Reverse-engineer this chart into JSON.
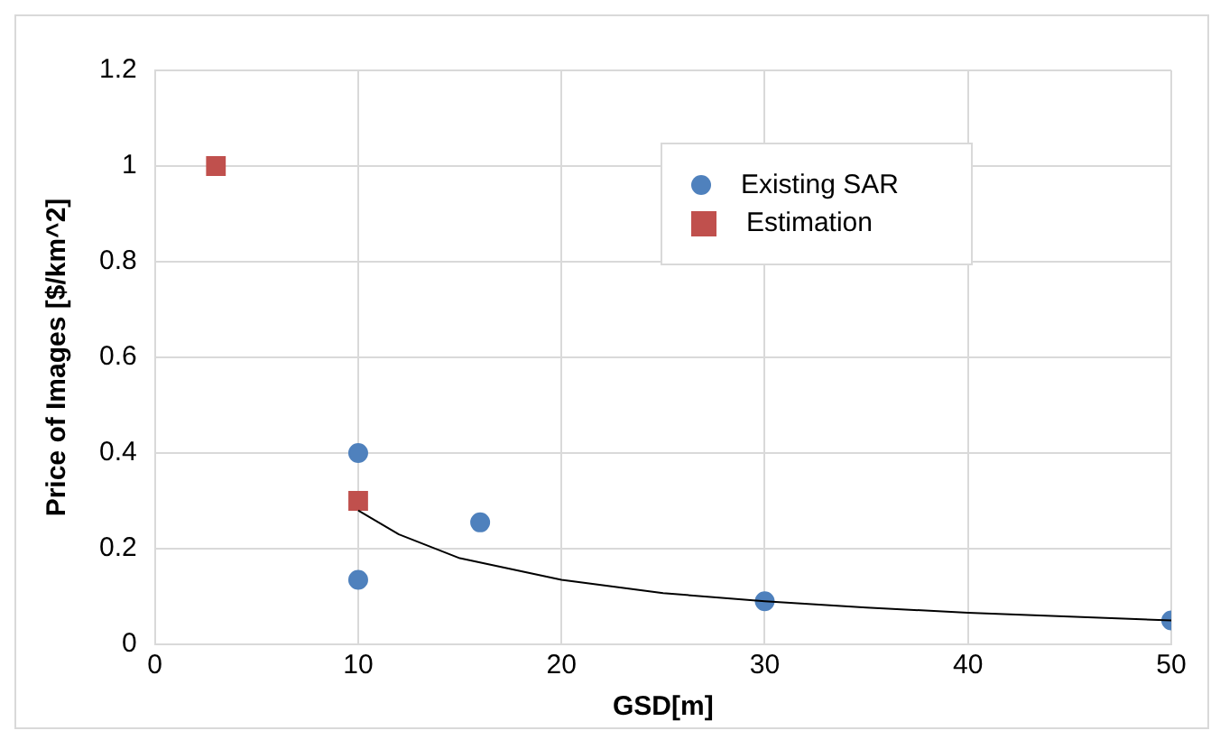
{
  "chart_data": {
    "type": "scatter",
    "xlabel": "GSD[m]",
    "ylabel": "Price of Images [$/km^2]",
    "xlim": [
      0,
      50
    ],
    "xticks": [
      0,
      10,
      20,
      30,
      40,
      50
    ],
    "ylim": [
      0,
      1.2
    ],
    "yticks": [
      0,
      0.2,
      0.4,
      0.6,
      0.8,
      1,
      1.2
    ],
    "grid": true,
    "legend": "top right",
    "marker": "circle",
    "series": [
      {
        "name": "Existing SAR",
        "color": "#4f81bd",
        "x": [
          10,
          10,
          16,
          30,
          50
        ],
        "values": [
          0.4,
          0.135,
          0.255,
          0.09,
          0.05
        ]
      },
      {
        "name": "Estimation",
        "color": "#c0504d",
        "marker": "square",
        "x": [
          3,
          10
        ],
        "values": [
          1,
          0.3
        ]
      },
      {
        "type": "line",
        "color": "#000000",
        "marker": "none",
        "x": [
          10,
          12,
          15,
          20,
          25,
          30,
          35,
          40,
          45,
          50
        ],
        "values": [
          0.28,
          0.23,
          0.18,
          0.135,
          0.107,
          0.09,
          0.077,
          0.066,
          0.058,
          0.05
        ]
      }
    ]
  }
}
